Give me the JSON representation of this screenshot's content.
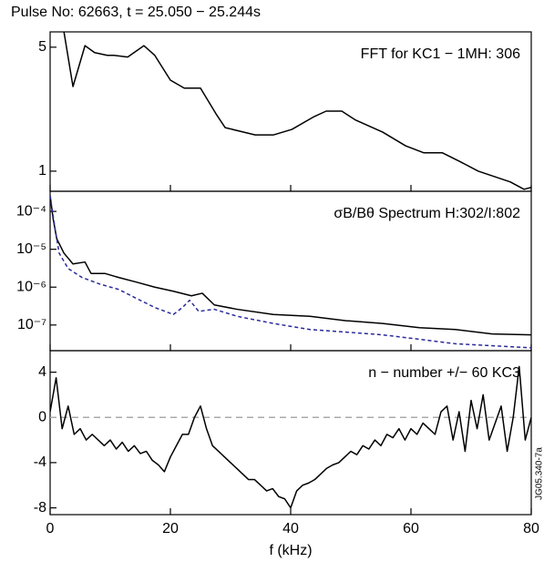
{
  "title": "Pulse No: 62663, t = 25.050 − 25.244s",
  "side_note": "JG05.340-7a",
  "chart_data": [
    {
      "type": "line",
      "annotation": "FFT for KC1 − 1MH: 306",
      "log_scale": true,
      "xlim": [
        0,
        80
      ],
      "xticks": [
        0,
        20,
        40,
        60,
        80
      ],
      "ylim": [
        0.77,
        6.1
      ],
      "yticks": [
        1,
        5
      ],
      "series": [
        {
          "color": "#000000",
          "dash": false,
          "x": [
            2.3,
            3.8,
            5.8,
            7.4,
            9.5,
            10.6,
            12.9,
            15.6,
            17.4,
            20.0,
            22.3,
            25.0,
            27.6,
            29.1,
            34.1,
            37.1,
            40.2,
            43.9,
            45.9,
            48.5,
            50.8,
            55.3,
            59.1,
            62.1,
            65.2,
            68.2,
            71.2,
            76.5,
            78.8,
            80
          ],
          "values": [
            6.1,
            3.0,
            5.1,
            4.66,
            4.5,
            4.5,
            4.4,
            5.1,
            4.5,
            3.26,
            2.94,
            2.94,
            2.1,
            1.76,
            1.6,
            1.6,
            1.72,
            2.03,
            2.18,
            2.18,
            1.94,
            1.66,
            1.39,
            1.27,
            1.27,
            1.13,
            1.0,
            0.87,
            0.79,
            0.81
          ]
        }
      ]
    },
    {
      "type": "line",
      "annotation": "σB/Bθ Spectrum H:302/I:802",
      "log_scale": true,
      "xlim": [
        0,
        80
      ],
      "xticks": [
        0,
        20,
        40,
        60,
        80
      ],
      "ylim": [
        2.1e-08,
        0.00034
      ],
      "yticks": [
        {
          "value": 0.0001,
          "label": "10⁻⁴"
        },
        {
          "value": 1e-05,
          "label": "10⁻⁵"
        },
        {
          "value": 1e-06,
          "label": "10⁻⁶"
        },
        {
          "value": 1e-07,
          "label": "10⁻⁷"
        }
      ],
      "series": [
        {
          "color": "#000000",
          "dash": false,
          "x": [
            0,
            0.5,
            1.1,
            2.3,
            3.8,
            5.8,
            6.8,
            9.1,
            11.4,
            14.4,
            17.4,
            20.5,
            23.5,
            25.3,
            27.3,
            31.1,
            37.1,
            43.2,
            49.2,
            55.3,
            61.4,
            67.4,
            73.5,
            80
          ],
          "values": [
            0.00026,
            6.4e-05,
            1.9e-05,
            7.9e-06,
            4.1e-06,
            4.6e-06,
            2.3e-06,
            2.3e-06,
            1.8e-06,
            1.35e-06,
            1e-06,
            7.8e-07,
            5.9e-07,
            6.9e-07,
            3.4e-07,
            2.6e-07,
            1.9e-07,
            1.7e-07,
            1.3e-07,
            1.1e-07,
            8.5e-08,
            7.6e-08,
            5.8e-08,
            5.5e-08
          ]
        },
        {
          "color": "#2a2a9a",
          "dash": true,
          "x": [
            0,
            0.8,
            1.5,
            3,
            5.3,
            8.3,
            11.4,
            14.4,
            17.4,
            20.5,
            22,
            23.2,
            24.7,
            27.3,
            31.1,
            37.1,
            43.2,
            49.2,
            55.3,
            61.4,
            67.4,
            80
          ],
          "values": [
            0.00026,
            3.7e-05,
            7.9e-06,
            3.1e-06,
            1.8e-06,
            1.2e-06,
            8.7e-07,
            5e-07,
            2.9e-07,
            1.9e-07,
            2.9e-07,
            4.5e-07,
            2.3e-07,
            2.6e-07,
            1.7e-07,
            1.1e-07,
            7.6e-08,
            6.5e-08,
            5.5e-08,
            4.2e-08,
            3.2e-08,
            2.5e-08
          ]
        }
      ]
    },
    {
      "type": "line",
      "annotation": "n − number +/−  60 KC3",
      "log_scale": false,
      "xlim": [
        0,
        80
      ],
      "xticks": [
        0,
        20,
        40,
        60,
        80
      ],
      "xlabel": "f (kHz)",
      "ylim": [
        -8.6,
        5.9
      ],
      "yticks": [
        -8,
        -4,
        0,
        4
      ],
      "reference_line": 0,
      "series": [
        {
          "color": "#000000",
          "dash": false,
          "x": [
            0,
            1,
            2,
            3,
            4,
            5,
            6,
            7,
            8,
            9,
            10,
            11,
            12,
            13,
            14,
            15,
            16,
            17,
            18,
            19,
            20,
            21,
            22,
            23,
            24,
            25,
            26,
            27,
            28,
            29,
            30,
            31,
            32,
            33,
            34,
            35,
            36,
            37,
            38,
            39,
            40,
            41,
            42,
            43,
            44,
            45,
            46,
            47,
            48,
            49,
            50,
            51,
            52,
            53,
            54,
            55,
            56,
            57,
            58,
            59,
            60,
            61,
            62,
            63,
            64,
            65,
            66,
            67,
            68,
            69,
            70,
            71,
            72,
            73,
            74,
            75,
            76,
            77,
            78,
            79,
            80
          ],
          "values": [
            0.5,
            3.5,
            -1,
            1,
            -1.5,
            -1,
            -2,
            -1.5,
            -2,
            -2.5,
            -2,
            -2.8,
            -2.2,
            -3,
            -2.5,
            -3.2,
            -3,
            -3.8,
            -4.2,
            -4.8,
            -3.5,
            -2.5,
            -1.5,
            -1.5,
            0,
            1,
            -1,
            -2.5,
            -3,
            -3.5,
            -4,
            -4.5,
            -5,
            -5.5,
            -5.5,
            -6,
            -6.5,
            -6.3,
            -7,
            -7.2,
            -8,
            -6.5,
            -6,
            -5.8,
            -5.5,
            -5,
            -4.5,
            -4.2,
            -4,
            -3.5,
            -3,
            -3.3,
            -2.5,
            -2.8,
            -2,
            -2.5,
            -1.5,
            -1.8,
            -1,
            -2,
            -1,
            -1.5,
            -0.5,
            -1,
            -1.5,
            0.5,
            1,
            -2,
            0.5,
            -3,
            1.5,
            -1,
            2,
            -2,
            -0.5,
            1,
            -3,
            0,
            4.5,
            -2,
            0
          ]
        }
      ]
    }
  ]
}
